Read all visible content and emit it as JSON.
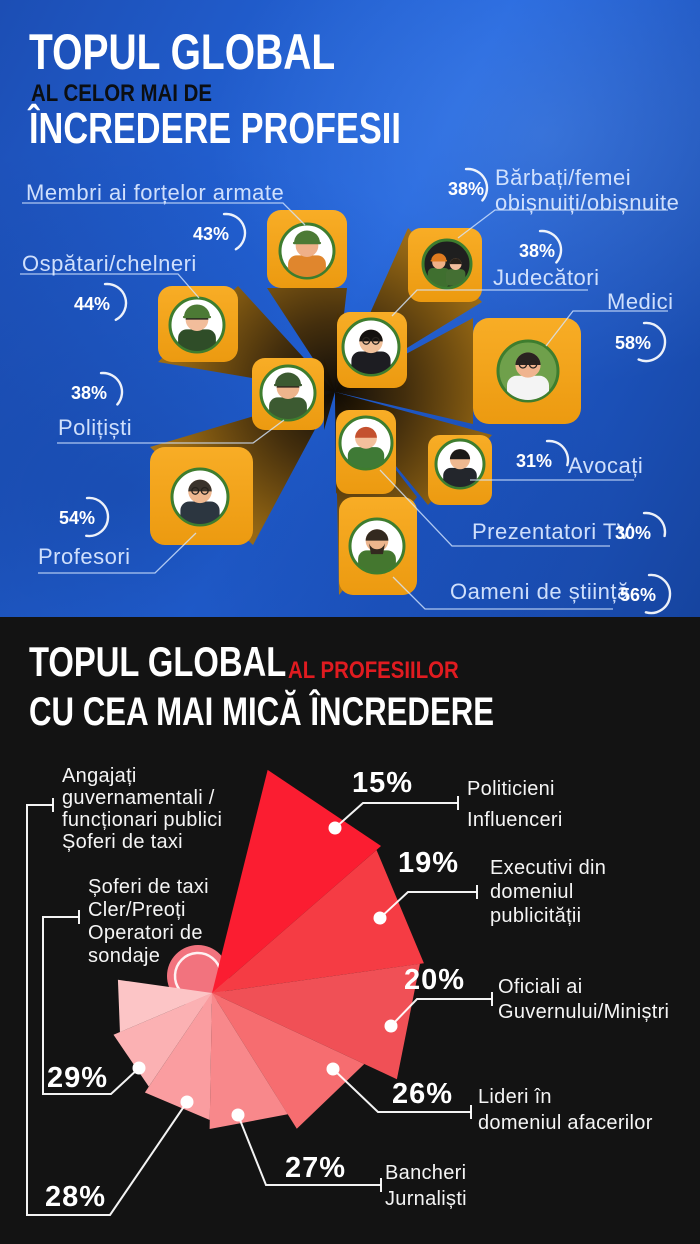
{
  "trusted": {
    "title_line1": "TOPUL GLOBAL",
    "title_line2": "AL CELOR MAI DE",
    "title_line3": "ÎNCREDERE PROFESII",
    "items": [
      {
        "label": "Membri ai forțelor armate",
        "value": 43,
        "pct": "43%",
        "icon": "soldier-icon"
      },
      {
        "label_line1": "Bărbați/femei",
        "label_line2": "obișnuiți/obișnuite",
        "value": 38,
        "pct": "38%",
        "icon": "ordinary-people-icon"
      },
      {
        "label": "Ospătari/chelneri",
        "value": 44,
        "pct": "44%",
        "icon": "waiter-icon"
      },
      {
        "label": "Judecători",
        "value": 38,
        "pct": "38%",
        "icon": "judge-icon"
      },
      {
        "label": "Medici",
        "value": 58,
        "pct": "58%",
        "icon": "doctor-icon"
      },
      {
        "label": "Polițiști",
        "value": 38,
        "pct": "38%",
        "icon": "police-officer-icon"
      },
      {
        "label": "Avocați",
        "value": 31,
        "pct": "31%",
        "icon": "lawyer-icon"
      },
      {
        "label": "Prezentatori TV",
        "value": 30,
        "pct": "30%",
        "icon": "tv-presenter-icon"
      },
      {
        "label": "Profesori",
        "value": 54,
        "pct": "54%",
        "icon": "teacher-icon"
      },
      {
        "label": "Oameni de știință",
        "value": 56,
        "pct": "56%",
        "icon": "scientist-icon"
      }
    ]
  },
  "least_trusted": {
    "title_line1": "TOPUL GLOBAL",
    "title_accent": "AL PROFESIILOR",
    "title_line2": "CU CEA MAI MICĂ ÎNCREDERE",
    "items": [
      {
        "pct": "15%",
        "value": 15,
        "label_lines": [
          "Politicieni",
          "Influenceri"
        ]
      },
      {
        "pct": "19%",
        "value": 19,
        "label_lines": [
          "Executivi din",
          "domeniul",
          "publicității"
        ]
      },
      {
        "pct": "20%",
        "value": 20,
        "label_lines": [
          "Oficiali ai",
          "Guvernului/Miniștri"
        ]
      },
      {
        "pct": "26%",
        "value": 26,
        "label_lines": [
          "Lideri în",
          "domeniul afacerilor"
        ]
      },
      {
        "pct": "27%",
        "value": 27,
        "label_lines": [
          "Bancheri",
          "Jurnaliști"
        ]
      },
      {
        "pct": "28%",
        "value": 28,
        "label_lines": [
          "Angajați",
          "guvernamentali /",
          "funcționari publici",
          "Șoferi de taxi"
        ]
      },
      {
        "pct": "29%",
        "value": 29,
        "label_lines": [
          "Șoferi de taxi",
          "Cler/Preoți",
          "Operatori de",
          "sondaje"
        ]
      }
    ]
  },
  "colors": {
    "background_top_blue": "#2260d2",
    "background_bottom_black": "#131313",
    "bar_orange": "#f3a31d",
    "accent_red": "#e01b20",
    "label_blue_white": "#d9e7ff",
    "white": "#ffffff",
    "wedge_palette": [
      "#fb1d31",
      "#f53c44",
      "#f05056",
      "#f66d70",
      "#f8888b",
      "#fa9da0",
      "#fbb1b3",
      "#fcc5c6"
    ]
  },
  "chart_data": [
    {
      "type": "radial-icon-bars",
      "title": "TOPUL GLOBAL AL CELOR MAI DE ÎNCREDERE PROFESII",
      "categories": [
        "Membri ai forțelor armate",
        "Bărbați/femei obișnuiți/obișnuite",
        "Ospătari/chelneri",
        "Judecători",
        "Medici",
        "Polițiști",
        "Avocați",
        "Prezentatori TV",
        "Profesori",
        "Oameni de știință"
      ],
      "values": [
        43,
        38,
        44,
        38,
        58,
        38,
        31,
        30,
        54,
        56
      ],
      "unit": "%",
      "legend_position": "around",
      "notes": "orange 3D blocks radiating from center, each with profession avatar and white gauge arc proportional to value"
    },
    {
      "type": "rose-fan",
      "title": "TOPUL GLOBAL AL PROFESIILOR CU CEA MAI MICĂ ÎNCREDERE",
      "categories": [
        "Politicieni / Influenceri",
        "Executivi din domeniul publicității",
        "Oficiali ai Guvernului/Miniștri",
        "Lideri în domeniul afacerilor",
        "Bancheri / Jurnaliști",
        "Angajați guvernamentali / funcționari publici / Șoferi de taxi",
        "Șoferi de taxi / Cler/Preoți / Operatori de sondaje"
      ],
      "values": [
        15,
        19,
        20,
        26,
        27,
        28,
        29
      ],
      "unit": "%",
      "notes": "red fan wedges spiral clockwise from top; brightest/longest = lowest trust"
    }
  ]
}
